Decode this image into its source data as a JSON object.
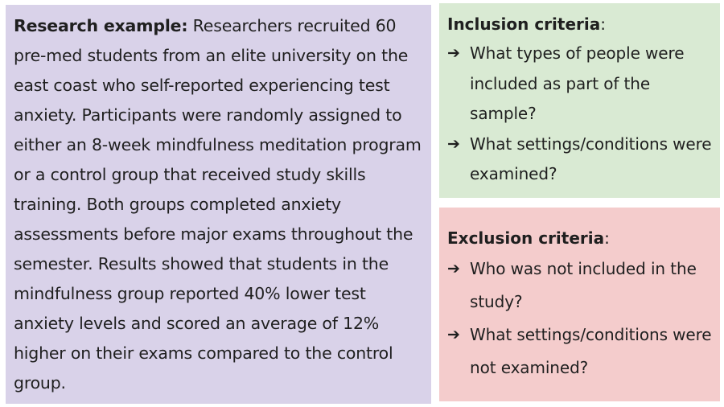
{
  "colors": {
    "research_bg": "#d9d2e9",
    "inclusion_bg": "#d9ead3",
    "exclusion_bg": "#f4cccc",
    "text": "#1f1f1f"
  },
  "research": {
    "label": "Research example:",
    "text": " Researchers recruited 60 pre-med students from an elite university on the east coast who self-reported experiencing test anxiety. Participants were randomly assigned to either an 8-week mindfulness meditation program or a control group that received study skills training. Both groups completed anxiety assessments before major exams throughout the semester. Results showed that students in the mindfulness group reported 40% lower test anxiety levels and scored an average of 12% higher on their exams compared to the control group."
  },
  "inclusion": {
    "title": "Inclusion criteria",
    "colon": ":",
    "bullet_icon": "arrow-right-icon",
    "items": [
      "What types of people were included as part of the sample?",
      "What settings/conditions were examined?"
    ]
  },
  "exclusion": {
    "title": "Exclusion criteria",
    "colon": ":",
    "bullet_icon": "arrow-right-icon",
    "items": [
      "Who was not included in the study?",
      "What settings/conditions were not examined?"
    ]
  }
}
